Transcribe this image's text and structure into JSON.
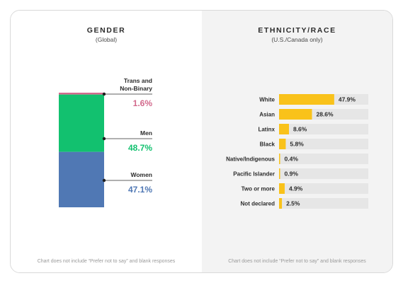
{
  "gender": {
    "title": "GENDER",
    "subtitle": "(Global)",
    "footnote": "Chart does not include “Prefer not to say” and blank responses"
  },
  "ethnicity": {
    "title": "ETHNICITY/RACE",
    "subtitle": "(U.S./Canada only)",
    "footnote": "Chart does not include “Prefer not to say” and blank responses"
  },
  "chart_data": [
    {
      "type": "bar",
      "stacked": true,
      "title": "GENDER",
      "subtitle": "(Global)",
      "unit": "%",
      "segments": [
        {
          "label_lines": [
            "Trans and",
            "Non-Binary"
          ],
          "value": 1.6,
          "value_label": "1.6%",
          "color": "#d2698c"
        },
        {
          "label_lines": [
            "Men"
          ],
          "value": 48.7,
          "value_label": "48.7%",
          "color": "#12c16f"
        },
        {
          "label_lines": [
            "Women"
          ],
          "value": 47.1,
          "value_label": "47.1%",
          "color": "#5078b4"
        }
      ]
    },
    {
      "type": "bar",
      "orientation": "horizontal",
      "title": "ETHNICITY/RACE",
      "subtitle": "(U.S./Canada only)",
      "unit": "%",
      "xlim": [
        0,
        100
      ],
      "bar_color": "#f9c21a",
      "track_color": "#e6e6e6",
      "categories": [
        "White",
        "Asian",
        "Latinx",
        "Black",
        "Native/Indigenous",
        "Pacific Islander",
        "Two or more",
        "Not declared"
      ],
      "values": [
        47.9,
        28.6,
        8.6,
        5.8,
        0.4,
        0.9,
        4.9,
        2.5
      ],
      "value_labels": [
        "47.9%",
        "28.6%",
        "8.6%",
        "5.8%",
        "0.4%",
        "0.9%",
        "4.9%",
        "2.5%"
      ]
    }
  ]
}
